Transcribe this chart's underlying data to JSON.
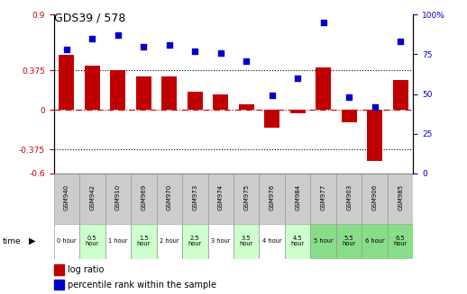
{
  "title": "GDS39 / 578",
  "categories": [
    "GSM940",
    "GSM942",
    "GSM910",
    "GSM969",
    "GSM970",
    "GSM973",
    "GSM974",
    "GSM975",
    "GSM976",
    "GSM984",
    "GSM977",
    "GSM903",
    "GSM906",
    "GSM985"
  ],
  "time_labels": [
    "0 hour",
    "0.5\nhour",
    "1 hour",
    "1.5\nhour",
    "2 hour",
    "2.5\nhour",
    "3 hour",
    "3.5\nhour",
    "4 hour",
    "4.5\nhour",
    "5 hour",
    "5.5\nhour",
    "6 hour",
    "6.5\nhour"
  ],
  "log_ratio": [
    0.52,
    0.42,
    0.38,
    0.32,
    0.32,
    0.17,
    0.15,
    0.05,
    -0.17,
    -0.03,
    0.4,
    -0.12,
    -0.48,
    0.28
  ],
  "percentile": [
    78,
    85,
    87,
    80,
    81,
    77,
    76,
    71,
    49,
    60,
    95,
    48,
    42,
    83
  ],
  "bar_color": "#C00000",
  "scatter_color": "#0000CC",
  "bg_color": "#FFFFFF",
  "plot_bg": "#FFFFFF",
  "ylim_left": [
    -0.6,
    0.9
  ],
  "ylim_right": [
    0,
    100
  ],
  "yticks_left": [
    -0.6,
    -0.375,
    0,
    0.375,
    0.9
  ],
  "yticks_right": [
    0,
    25,
    50,
    75,
    100
  ],
  "hline_dotted": [
    0.375,
    -0.375
  ],
  "hline_dash": 0.0,
  "title_color": "#000000",
  "gsm_bg": "#CCCCCC",
  "gsm_border": "#999999",
  "time_bg_colors": [
    "#FFFFFF",
    "#CCFFCC",
    "#FFFFFF",
    "#CCFFCC",
    "#FFFFFF",
    "#CCFFCC",
    "#FFFFFF",
    "#CCFFCC",
    "#FFFFFF",
    "#CCFFCC",
    "#88DD88",
    "#88DD88",
    "#88DD88",
    "#88DD88"
  ]
}
